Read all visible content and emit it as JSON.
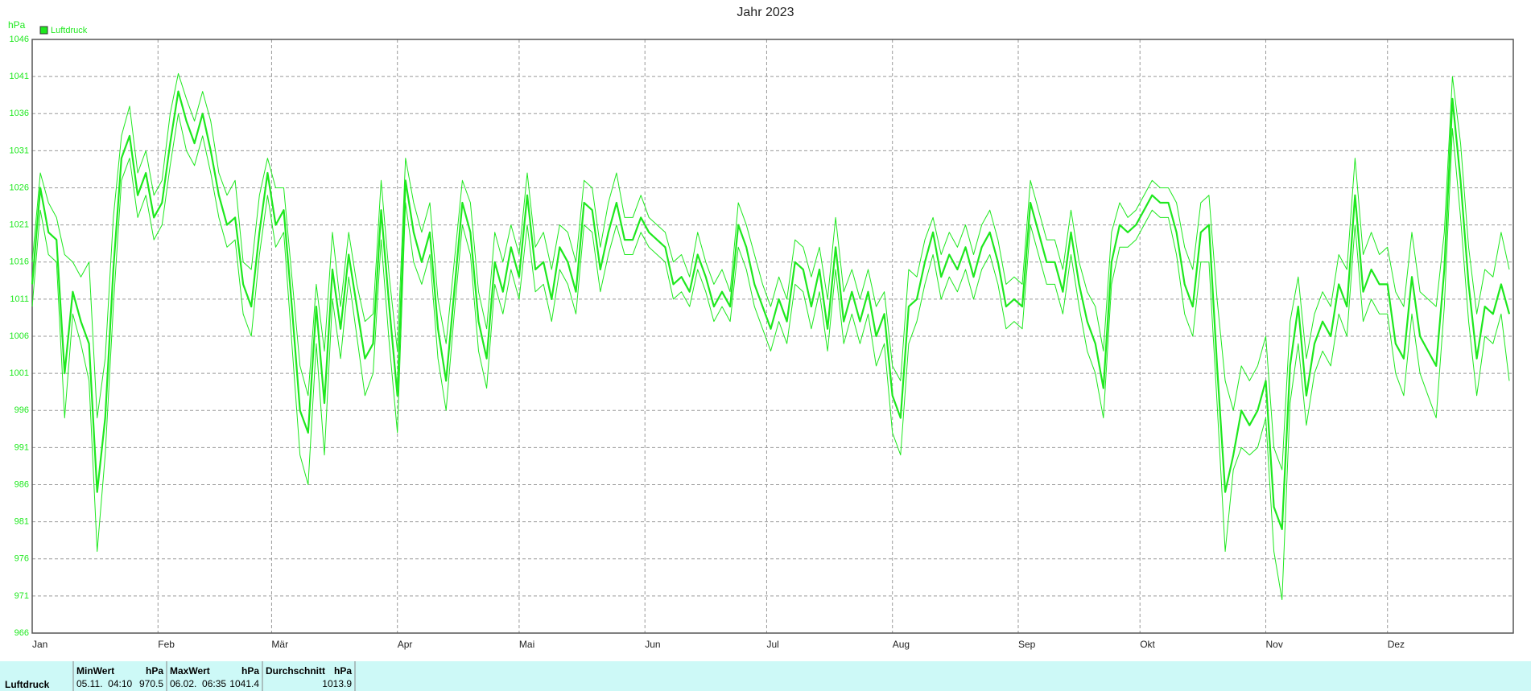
{
  "chart_data": {
    "type": "line",
    "title": "Jahr 2023",
    "y_label": "hPa",
    "grid": true,
    "legend": "top-left",
    "x": [
      0,
      2,
      4,
      6,
      8,
      10,
      12,
      14,
      16,
      18,
      20,
      22,
      24,
      26,
      28,
      30,
      32,
      34,
      36,
      38,
      40,
      42,
      44,
      46,
      48,
      50,
      52,
      54,
      56,
      58,
      60,
      62,
      64,
      66,
      68,
      70,
      72,
      74,
      76,
      78,
      80,
      82,
      84,
      86,
      88,
      90,
      92,
      94,
      96,
      98,
      100,
      102,
      104,
      106,
      108,
      110,
      112,
      114,
      116,
      118,
      120,
      122,
      124,
      126,
      128,
      130,
      132,
      134,
      136,
      138,
      140,
      142,
      144,
      146,
      148,
      150,
      152,
      154,
      156,
      158,
      160,
      162,
      164,
      166,
      168,
      170,
      172,
      174,
      176,
      178,
      180,
      182,
      184,
      186,
      188,
      190,
      192,
      194,
      196,
      198,
      200,
      202,
      204,
      206,
      208,
      210,
      212,
      214,
      216,
      218,
      220,
      222,
      224,
      226,
      228,
      230,
      232,
      234,
      236,
      238,
      240,
      242,
      244,
      246,
      248,
      250,
      252,
      254,
      256,
      258,
      260,
      262,
      264,
      266,
      268,
      270,
      272,
      274,
      276,
      278,
      280,
      282,
      284,
      286,
      288,
      290,
      292,
      294,
      296,
      298,
      300,
      302,
      304,
      306,
      308,
      310,
      312,
      314,
      316,
      318,
      320,
      322,
      324,
      326,
      328,
      330,
      332,
      334,
      336,
      338,
      340,
      342,
      344,
      346,
      348,
      350,
      352,
      354,
      356,
      358,
      360,
      362,
      364
    ],
    "xlim": [
      0,
      365
    ],
    "xticks": [
      {
        "value": 0,
        "label": "Jan"
      },
      {
        "value": 31,
        "label": "Feb"
      },
      {
        "value": 59,
        "label": "Mär"
      },
      {
        "value": 90,
        "label": "Apr"
      },
      {
        "value": 120,
        "label": "Mai"
      },
      {
        "value": 151,
        "label": "Jun"
      },
      {
        "value": 181,
        "label": "Jul"
      },
      {
        "value": 212,
        "label": "Aug"
      },
      {
        "value": 243,
        "label": "Sep"
      },
      {
        "value": 273,
        "label": "Okt"
      },
      {
        "value": 304,
        "label": "Nov"
      },
      {
        "value": 334,
        "label": "Dez"
      }
    ],
    "ylim": [
      966,
      1046
    ],
    "yticks": [
      966,
      971,
      976,
      981,
      986,
      991,
      996,
      1001,
      1006,
      1011,
      1016,
      1021,
      1026,
      1031,
      1036,
      1041,
      1046
    ],
    "series": [
      {
        "name": "Luftdruck",
        "color": "#1ee81e",
        "values": [
          1013,
          1026,
          1020,
          1019,
          1001,
          1012,
          1008,
          1005,
          985,
          995,
          1015,
          1030,
          1033,
          1025,
          1028,
          1022,
          1024,
          1032,
          1039,
          1035,
          1032,
          1036,
          1031,
          1025,
          1021,
          1022,
          1013,
          1010,
          1020,
          1028,
          1021,
          1023,
          1010,
          996,
          993,
          1010,
          997,
          1015,
          1007,
          1017,
          1010,
          1003,
          1005,
          1023,
          1010,
          998,
          1027,
          1020,
          1016,
          1020,
          1007,
          1000,
          1012,
          1024,
          1020,
          1008,
          1003,
          1016,
          1012,
          1018,
          1014,
          1025,
          1015,
          1016,
          1011,
          1018,
          1016,
          1012,
          1024,
          1023,
          1015,
          1020,
          1024,
          1019,
          1019,
          1022,
          1020,
          1019,
          1018,
          1013,
          1014,
          1012,
          1017,
          1014,
          1010,
          1012,
          1010,
          1021,
          1018,
          1013,
          1010,
          1007,
          1011,
          1008,
          1016,
          1015,
          1010,
          1015,
          1007,
          1018,
          1008,
          1012,
          1008,
          1012,
          1006,
          1009,
          998,
          995,
          1010,
          1011,
          1016,
          1020,
          1014,
          1017,
          1015,
          1018,
          1014,
          1018,
          1020,
          1016,
          1010,
          1011,
          1010,
          1024,
          1020,
          1016,
          1016,
          1012,
          1020,
          1013,
          1008,
          1005,
          999,
          1016,
          1021,
          1020,
          1021,
          1023,
          1025,
          1024,
          1024,
          1020,
          1013,
          1010,
          1020,
          1021,
          1002,
          985,
          990,
          996,
          994,
          996,
          1000,
          983,
          980,
          1002,
          1010,
          998,
          1005,
          1008,
          1006,
          1013,
          1010,
          1025,
          1012,
          1015,
          1013,
          1013,
          1005,
          1003,
          1014,
          1006,
          1004,
          1002,
          1015,
          1038,
          1027,
          1013,
          1003,
          1010,
          1009,
          1013,
          1009
        ],
        "min": [
          1010,
          1023,
          1017,
          1016,
          995,
          1009,
          1005,
          1000,
          977,
          990,
          1010,
          1027,
          1030,
          1022,
          1025,
          1019,
          1021,
          1029,
          1036,
          1031,
          1029,
          1033,
          1028,
          1022,
          1018,
          1019,
          1009,
          1006,
          1017,
          1025,
          1018,
          1020,
          1005,
          990,
          986,
          1005,
          990,
          1011,
          1003,
          1014,
          1006,
          998,
          1001,
          1019,
          1005,
          993,
          1024,
          1016,
          1013,
          1017,
          1003,
          996,
          1009,
          1021,
          1017,
          1004,
          999,
          1013,
          1009,
          1015,
          1011,
          1021,
          1012,
          1013,
          1008,
          1015,
          1013,
          1009,
          1021,
          1020,
          1012,
          1017,
          1021,
          1017,
          1017,
          1020,
          1018,
          1017,
          1016,
          1011,
          1012,
          1010,
          1015,
          1012,
          1008,
          1010,
          1008,
          1018,
          1015,
          1010,
          1007,
          1004,
          1008,
          1005,
          1013,
          1012,
          1007,
          1012,
          1004,
          1015,
          1005,
          1009,
          1005,
          1009,
          1002,
          1005,
          993,
          990,
          1005,
          1008,
          1013,
          1017,
          1011,
          1014,
          1012,
          1015,
          1011,
          1015,
          1017,
          1013,
          1007,
          1008,
          1007,
          1021,
          1017,
          1013,
          1013,
          1009,
          1017,
          1010,
          1004,
          1001,
          995,
          1013,
          1018,
          1018,
          1019,
          1021,
          1023,
          1022,
          1022,
          1017,
          1009,
          1006,
          1016,
          1016,
          997,
          977,
          988,
          991,
          990,
          991,
          995,
          977,
          970.5,
          997,
          1005,
          994,
          1001,
          1004,
          1002,
          1009,
          1006,
          1021,
          1008,
          1011,
          1009,
          1009,
          1001,
          998,
          1009,
          1001,
          998,
          995,
          1010,
          1034,
          1022,
          1008,
          998,
          1006,
          1005,
          1009,
          1000
        ],
        "max": [
          1016,
          1028,
          1024,
          1022,
          1017,
          1016,
          1014,
          1016,
          995,
          1003,
          1022,
          1033,
          1037,
          1028,
          1031,
          1025,
          1027,
          1036,
          1041.4,
          1038,
          1035,
          1039,
          1035,
          1028,
          1025,
          1027,
          1016,
          1015,
          1025,
          1030,
          1026,
          1026,
          1014,
          1002,
          998,
          1013,
          1004,
          1020,
          1010,
          1020,
          1013,
          1008,
          1009,
          1027,
          1014,
          1004,
          1030,
          1024,
          1020,
          1024,
          1011,
          1005,
          1016,
          1027,
          1024,
          1012,
          1007,
          1020,
          1016,
          1021,
          1017,
          1028,
          1018,
          1020,
          1015,
          1021,
          1020,
          1016,
          1027,
          1026,
          1018,
          1024,
          1028,
          1022,
          1022,
          1025,
          1022,
          1021,
          1020,
          1016,
          1017,
          1014,
          1020,
          1016,
          1013,
          1015,
          1012,
          1024,
          1021,
          1017,
          1013,
          1010,
          1014,
          1011,
          1019,
          1018,
          1014,
          1018,
          1011,
          1022,
          1012,
          1015,
          1011,
          1015,
          1010,
          1012,
          1002,
          1000,
          1015,
          1014,
          1019,
          1022,
          1017,
          1020,
          1018,
          1021,
          1017,
          1021,
          1023,
          1019,
          1013,
          1014,
          1013,
          1027,
          1023,
          1019,
          1019,
          1015,
          1023,
          1016,
          1012,
          1010,
          1004,
          1020,
          1024,
          1022,
          1023,
          1025,
          1027,
          1026,
          1026,
          1024,
          1018,
          1015,
          1024,
          1025,
          1011,
          1000,
          996,
          1002,
          1000,
          1002,
          1006,
          991,
          988,
          1008,
          1014,
          1003,
          1009,
          1012,
          1010,
          1017,
          1015,
          1030,
          1017,
          1020,
          1017,
          1018,
          1012,
          1010,
          1020,
          1012,
          1011,
          1010,
          1020,
          1041,
          1032,
          1018,
          1009,
          1015,
          1014,
          1020,
          1015
        ]
      }
    ]
  },
  "summary": {
    "label": "Luftdruck",
    "columns": [
      {
        "header": "MinWert",
        "unit": "hPa",
        "time": "05.11.  04:10",
        "value": 970.5
      },
      {
        "header": "MaxWert",
        "unit": "hPa",
        "time": "06.02.  06:35",
        "value": 1041.4
      },
      {
        "header": "Durchschnitt",
        "unit": "hPa",
        "value": 1013.9
      }
    ]
  }
}
